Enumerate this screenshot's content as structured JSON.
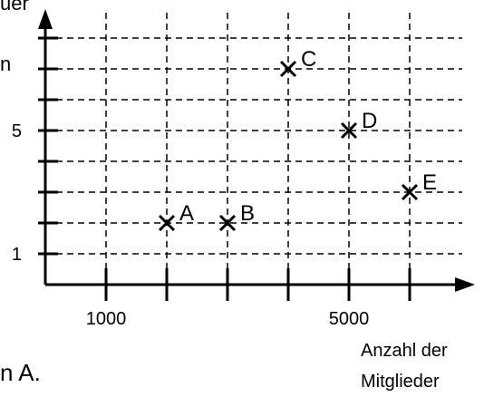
{
  "fragments": {
    "top_left": "uer",
    "left_edge": "n",
    "bottom_left": "n A."
  },
  "chart_data": {
    "type": "scatter",
    "title": "",
    "xlabel": "Anzahl der Mitglieder",
    "xlabel_lines": [
      "Anzahl der",
      "Mitglieder"
    ],
    "ylabel": "",
    "xlim": [
      0,
      6500
    ],
    "ylim": [
      0,
      8
    ],
    "x_grid": [
      1000,
      2000,
      3000,
      4000,
      5000,
      6000
    ],
    "y_grid": [
      1,
      2,
      3,
      4,
      5,
      6,
      7,
      8
    ],
    "x_tick_labels": [
      {
        "value": 1000,
        "label": "1000"
      },
      {
        "value": 5000,
        "label": "5000"
      }
    ],
    "y_tick_labels": [
      {
        "value": 1,
        "label": "1"
      },
      {
        "value": 5,
        "label": "5"
      }
    ],
    "grid": true,
    "marker": "x",
    "points": [
      {
        "label": "A",
        "x": 2000,
        "y": 2
      },
      {
        "label": "B",
        "x": 3000,
        "y": 2
      },
      {
        "label": "C",
        "x": 4000,
        "y": 7
      },
      {
        "label": "D",
        "x": 5000,
        "y": 5
      },
      {
        "label": "E",
        "x": 6000,
        "y": 3
      }
    ]
  }
}
